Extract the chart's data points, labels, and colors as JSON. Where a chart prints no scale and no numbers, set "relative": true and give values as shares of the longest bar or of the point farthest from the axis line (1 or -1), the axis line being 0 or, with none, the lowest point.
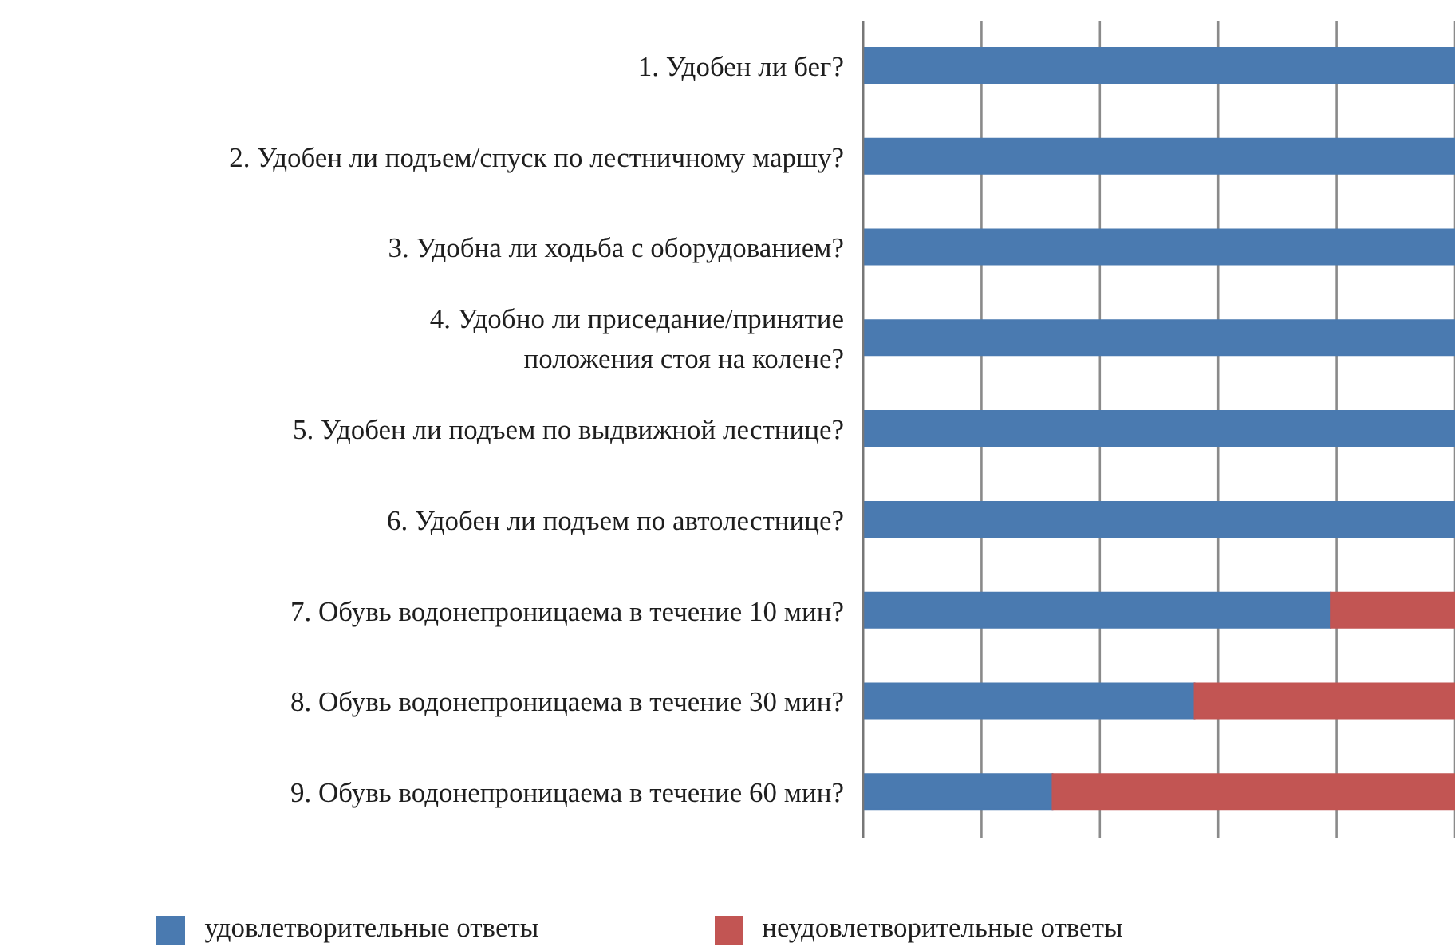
{
  "chart_data": {
    "type": "bar",
    "orientation": "horizontal",
    "stacked": true,
    "relative": true,
    "grid": "x",
    "legend": "bottom",
    "categories": [
      "1. Удобен ли бег?",
      "2. Удобен ли подъем/спуск по лестничному маршу?",
      "3. Удобна ли ходьба с оборудованием?",
      "4. Удобно ли приседание/принятие\nположения стоя на колене?",
      "5. Удобен ли подъем по выдвижной лестнице?",
      "6. Удобен ли подъем по автолестнице?",
      "7. Обувь водонепроницаема в течение 10 мин?",
      "8. Обувь водонепроницаема в течение 30 мин?",
      "9. Обувь водонепроницаема в течение 60 мин?"
    ],
    "series": [
      {
        "name": "удовлетворительные ответы",
        "color": "#4a7ab0",
        "values": [
          1,
          1,
          1,
          1,
          1,
          1,
          0.79,
          0.56,
          0.32
        ]
      },
      {
        "name": "неудовлетворительные ответы",
        "color": "#c25553",
        "values": [
          0,
          0,
          0,
          0,
          0,
          0,
          0.21,
          0.44,
          0.68
        ]
      }
    ]
  }
}
